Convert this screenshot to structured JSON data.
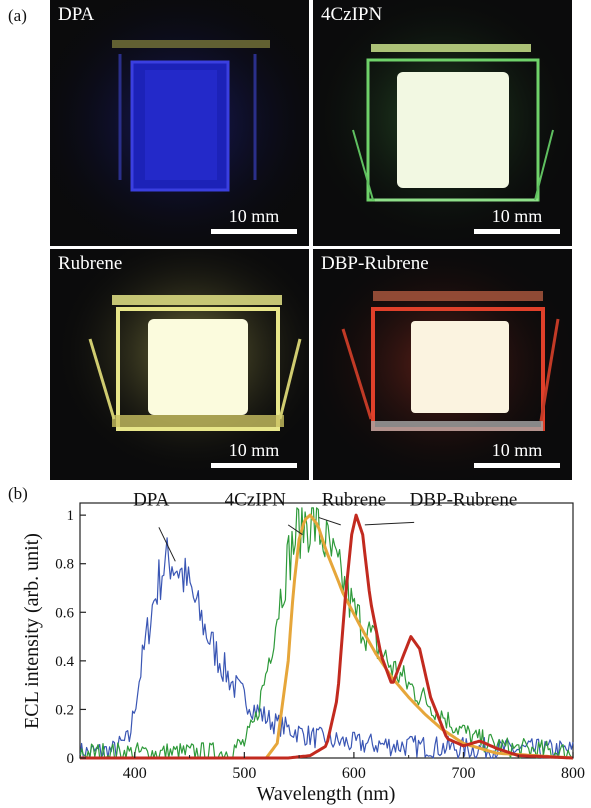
{
  "figure": {
    "panel_a_label": "(a)",
    "panel_b_label": "(b)",
    "photos": [
      {
        "title": "DPA",
        "scale": "10 mm",
        "emission_color": "#2a2fd8",
        "glow_color": "#2a2fd8"
      },
      {
        "title": "4CzIPN",
        "scale": "10 mm",
        "emission_color": "#f2f8e2",
        "glow_color": "#5fd35a"
      },
      {
        "title": "Rubrene",
        "scale": "10 mm",
        "emission_color": "#fbfbdd",
        "glow_color": "#e6e070"
      },
      {
        "title": "DBP-Rubrene",
        "scale": "10 mm",
        "emission_color": "#fbf3e0",
        "glow_color": "#e0402a"
      }
    ]
  },
  "chart_data": {
    "type": "line",
    "xlabel": "Wavelength (nm)",
    "ylabel": "ECL intensity (arb. unit)",
    "xlim": [
      350,
      800
    ],
    "ylim": [
      0,
      1.05
    ],
    "xticks": [
      400,
      500,
      600,
      700,
      800
    ],
    "yticks": [
      0,
      0.2,
      0.4,
      0.6,
      0.8,
      1
    ],
    "ytick_labels": [
      "0",
      "0.2",
      "0.4",
      "0.6",
      "0.8",
      "1"
    ],
    "series": [
      {
        "name": "DPA",
        "color": "#3a56b4",
        "noisy": true,
        "x": [
          350,
          380,
          395,
          405,
          415,
          425,
          432,
          440,
          450,
          460,
          470,
          480,
          490,
          500,
          510,
          525,
          540,
          560,
          580,
          600,
          650,
          700,
          800
        ],
        "y": [
          0.02,
          0.03,
          0.08,
          0.35,
          0.6,
          0.78,
          0.82,
          0.78,
          0.7,
          0.58,
          0.47,
          0.38,
          0.3,
          0.25,
          0.2,
          0.15,
          0.12,
          0.09,
          0.07,
          0.06,
          0.05,
          0.04,
          0.03
        ]
      },
      {
        "name": "4CzIPN",
        "color": "#2e9a3a",
        "noisy": true,
        "x": [
          350,
          480,
          500,
          510,
          520,
          530,
          540,
          550,
          557,
          565,
          575,
          590,
          600,
          615,
          630,
          650,
          670,
          690,
          710,
          740,
          800
        ],
        "y": [
          0.02,
          0.02,
          0.06,
          0.15,
          0.35,
          0.6,
          0.82,
          0.95,
          0.98,
          0.96,
          0.88,
          0.72,
          0.6,
          0.5,
          0.4,
          0.3,
          0.22,
          0.14,
          0.08,
          0.04,
          0.02
        ]
      },
      {
        "name": "Rubrene",
        "color": "#e6a63a",
        "noisy": false,
        "x": [
          350,
          520,
          530,
          540,
          545,
          550,
          555,
          560,
          567,
          575,
          590,
          605,
          620,
          635,
          650,
          665,
          680,
          700,
          730,
          800
        ],
        "y": [
          0.0,
          0.0,
          0.06,
          0.4,
          0.7,
          0.9,
          0.98,
          1.0,
          0.96,
          0.85,
          0.68,
          0.55,
          0.43,
          0.33,
          0.25,
          0.18,
          0.12,
          0.06,
          0.02,
          0.0
        ]
      },
      {
        "name": "DBP-Rubrene",
        "color": "#c22a1f",
        "noisy": false,
        "x": [
          350,
          540,
          560,
          575,
          585,
          592,
          598,
          602,
          608,
          615,
          625,
          635,
          645,
          652,
          660,
          670,
          685,
          700,
          715,
          730,
          750,
          800
        ],
        "y": [
          0.0,
          0.0,
          0.01,
          0.05,
          0.25,
          0.65,
          0.92,
          1.0,
          0.92,
          0.65,
          0.42,
          0.3,
          0.42,
          0.5,
          0.45,
          0.25,
          0.08,
          0.05,
          0.07,
          0.04,
          0.01,
          0.0
        ]
      }
    ],
    "annotations": [
      "DPA",
      "4CzIPN",
      "Rubrene",
      "DBP-Rubrene"
    ]
  }
}
